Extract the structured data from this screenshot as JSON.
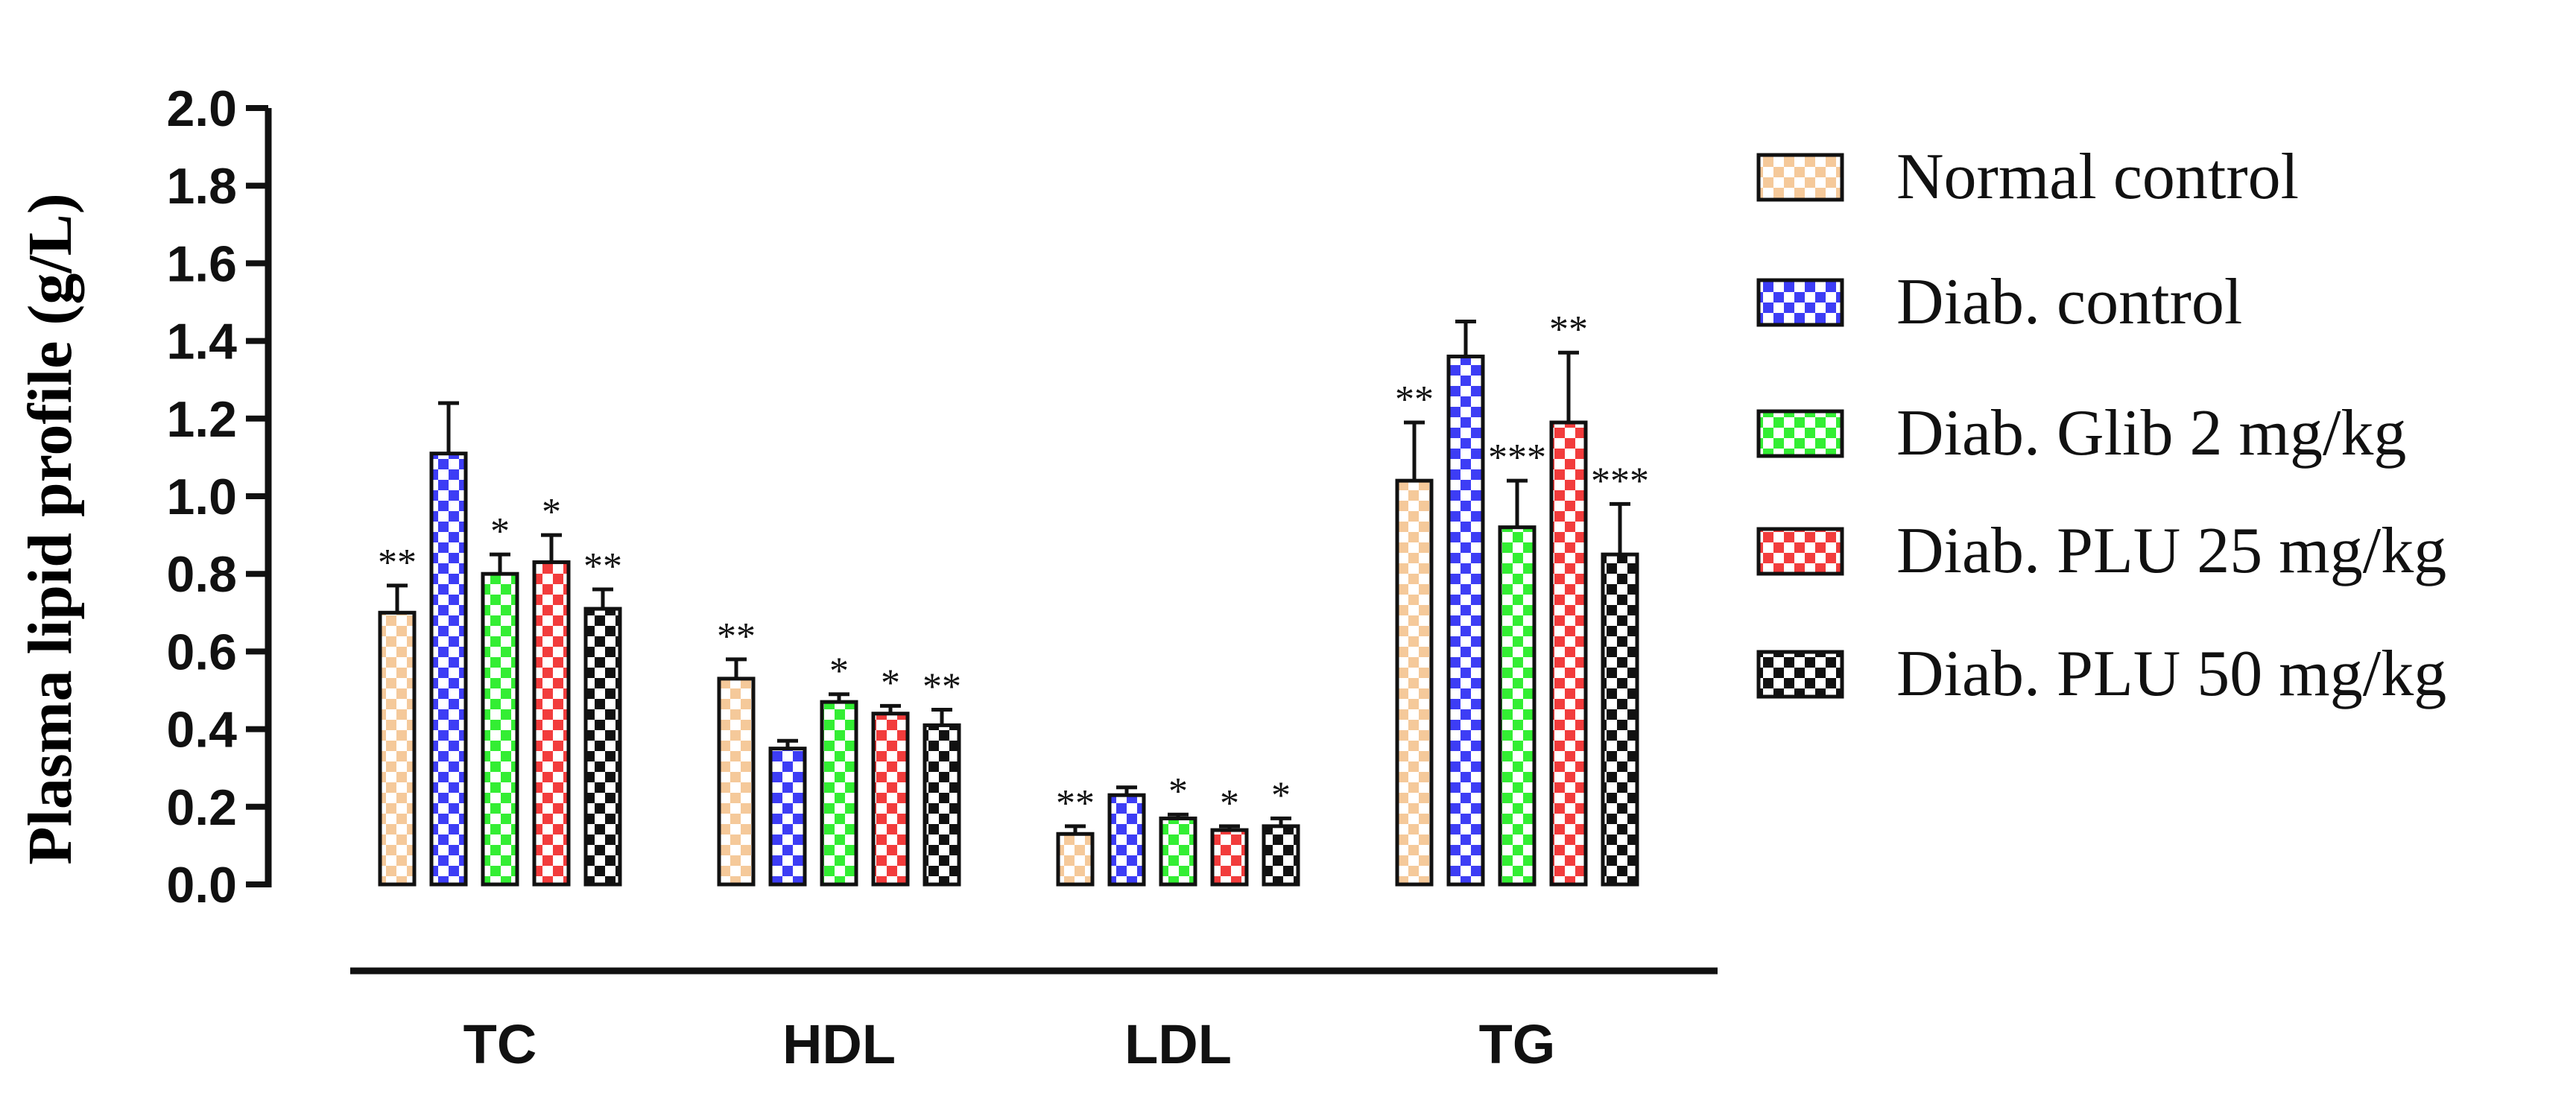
{
  "chart_data": {
    "type": "bar",
    "ylabel": "Plasma lipid profile (g/L)",
    "xlabel": "",
    "ylim": [
      0,
      2.0
    ],
    "y_ticks": [
      "0.0",
      "0.2",
      "0.4",
      "0.6",
      "0.8",
      "1.0",
      "1.2",
      "1.4",
      "1.6",
      "1.8",
      "2.0"
    ],
    "categories": [
      "TC",
      "HDL",
      "LDL",
      "TG"
    ],
    "legend_position": "right",
    "grid": false,
    "series": [
      {
        "name": "Normal control",
        "color": "#f5c99a",
        "values": [
          0.7,
          0.53,
          0.13,
          1.04
        ],
        "errors": [
          0.07,
          0.05,
          0.02,
          0.15
        ],
        "significance": [
          "**",
          "**",
          "**",
          "**"
        ]
      },
      {
        "name": "Diab. control",
        "color": "#3d3df5",
        "values": [
          1.11,
          0.35,
          0.23,
          1.36
        ],
        "errors": [
          0.13,
          0.02,
          0.02,
          0.09
        ],
        "significance": [
          "",
          "",
          "",
          ""
        ]
      },
      {
        "name": "Diab. Glib 2 mg/kg",
        "color": "#33ee33",
        "values": [
          0.8,
          0.47,
          0.17,
          0.92
        ],
        "errors": [
          0.05,
          0.02,
          0.01,
          0.12
        ],
        "significance": [
          "*",
          "*",
          "*",
          "***"
        ]
      },
      {
        "name": "Diab. PLU 25 mg/kg",
        "color": "#f23c3c",
        "values": [
          0.83,
          0.44,
          0.14,
          1.19
        ],
        "errors": [
          0.07,
          0.02,
          0.01,
          0.18
        ],
        "significance": [
          "*",
          "*",
          "*",
          "**"
        ]
      },
      {
        "name": "Diab. PLU 50 mg/kg",
        "color": "#111111",
        "values": [
          0.71,
          0.41,
          0.15,
          0.85
        ],
        "errors": [
          0.05,
          0.04,
          0.02,
          0.13
        ],
        "significance": [
          "**",
          "**",
          "*",
          "***"
        ]
      }
    ]
  }
}
